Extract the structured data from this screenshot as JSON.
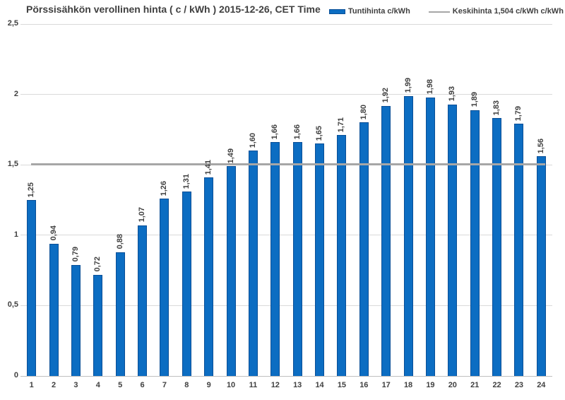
{
  "title": "Pörssisähkön verollinen hinta ( c / kWh ) 2015-12-26, CET Time",
  "legend": {
    "series_label": "Tuntihinta c/kWh",
    "average_label": "Keskihinta 1,504 c/kWh c/kWh"
  },
  "colors": {
    "bar_fill": "#0c6dc2",
    "bar_border": "#0a4f97",
    "average_line": "#a6a6a6",
    "gridline": "#d9d9d9",
    "axis_line": "#bfbfbf",
    "text": "#404040"
  },
  "chart_data": {
    "type": "bar",
    "title": "Pörssisähkön verollinen hinta ( c / kWh ) 2015-12-26, CET Time",
    "series_name": "Tuntihinta c/kWh",
    "categories": [
      "1",
      "2",
      "3",
      "4",
      "5",
      "6",
      "7",
      "8",
      "9",
      "10",
      "11",
      "12",
      "13",
      "14",
      "15",
      "16",
      "17",
      "18",
      "19",
      "20",
      "21",
      "22",
      "23",
      "24"
    ],
    "values": [
      1.25,
      0.94,
      0.79,
      0.72,
      0.88,
      1.07,
      1.26,
      1.31,
      1.41,
      1.49,
      1.6,
      1.66,
      1.66,
      1.65,
      1.71,
      1.8,
      1.92,
      1.99,
      1.98,
      1.93,
      1.89,
      1.83,
      1.79,
      1.56
    ],
    "value_labels": [
      "1,25",
      "0,94",
      "0,79",
      "0,72",
      "0,88",
      "1,07",
      "1,26",
      "1,31",
      "1,41",
      "1,49",
      "1,60",
      "1,66",
      "1,66",
      "1,65",
      "1,71",
      "1,80",
      "1,92",
      "1,99",
      "1,98",
      "1,93",
      "1,89",
      "1,83",
      "1,79",
      "1,56"
    ],
    "average": {
      "name": "Keskihinta",
      "value": 1.504,
      "label": "Keskihinta 1,504 c/kWh c/kWh"
    },
    "xlabel": "",
    "ylabel": "",
    "ylim": [
      0,
      2.5
    ],
    "yticks": [
      {
        "value": 0,
        "label": "0"
      },
      {
        "value": 0.5,
        "label": "0,5"
      },
      {
        "value": 1,
        "label": "1"
      },
      {
        "value": 1.5,
        "label": "1,5"
      },
      {
        "value": 2,
        "label": "2"
      },
      {
        "value": 2.5,
        "label": "2,5"
      }
    ],
    "grid": true,
    "legend_position": "top-right"
  }
}
